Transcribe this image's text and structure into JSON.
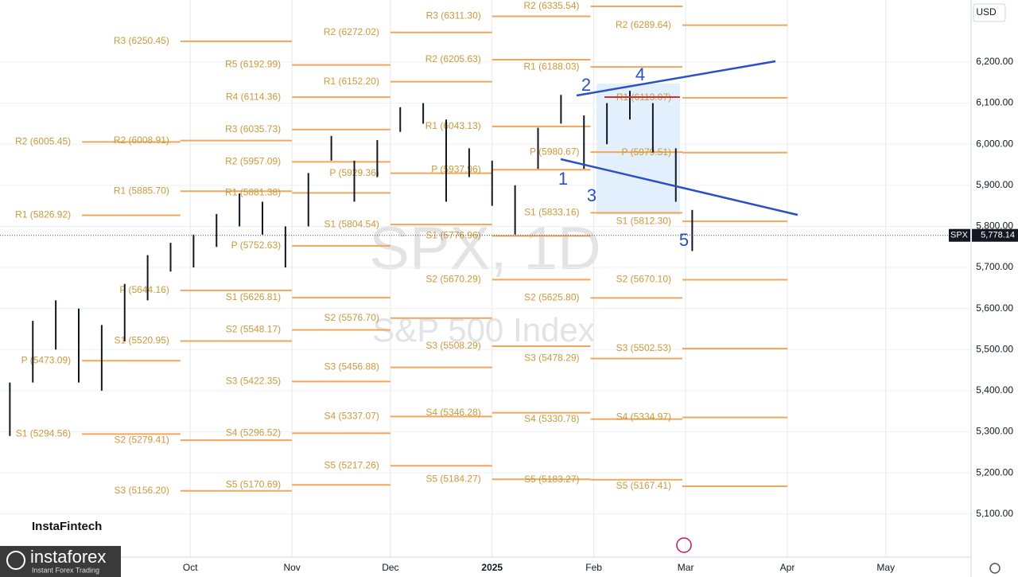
{
  "chart_data": {
    "type": "ohlc",
    "title": "SPX, 1D",
    "subtitle": "S&P 500 Index",
    "currency": "USD",
    "symbol": "SPX",
    "last_price": {
      "value": 5778.14,
      "label": "5,778.14"
    },
    "color": "#131722",
    "x": [
      -25,
      -18,
      -11,
      -4,
      3,
      10,
      17,
      24,
      31,
      38,
      45,
      52,
      59,
      66,
      73,
      80,
      87,
      94,
      101,
      108,
      115,
      122,
      129,
      136,
      143,
      150,
      157,
      164,
      171,
      178,
      183
    ],
    "high": [
      5420,
      5570,
      5620,
      5600,
      5560,
      5660,
      5730,
      5760,
      5780,
      5830,
      5880,
      5860,
      5800,
      5930,
      6020,
      5960,
      6010,
      6090,
      6100,
      6060,
      5990,
      5960,
      5900,
      6040,
      6120,
      6070,
      6100,
      6130,
      6100,
      5990,
      5840
    ],
    "low": [
      5290,
      5420,
      5500,
      5420,
      5400,
      5520,
      5620,
      5690,
      5700,
      5750,
      5800,
      5780,
      5700,
      5800,
      5960,
      5860,
      5920,
      6030,
      6050,
      5860,
      5920,
      5850,
      5780,
      5940,
      6050,
      5940,
      6000,
      6060,
      5980,
      5860,
      5740
    ],
    "xlim": [
      -28,
      268
    ],
    "xticks": [
      {
        "value": 30,
        "label": "Oct"
      },
      {
        "value": 61,
        "label": "Nov"
      },
      {
        "value": 91,
        "label": "Dec"
      },
      {
        "value": 122,
        "label": "2025"
      },
      {
        "value": 153,
        "label": "Feb"
      },
      {
        "value": 181,
        "label": "Mar"
      },
      {
        "value": 212,
        "label": "Apr"
      },
      {
        "value": 242,
        "label": "May"
      }
    ],
    "ylim": [
      4995,
      6351
    ],
    "yticks": [
      {
        "value": 5100,
        "label": "5,100.00"
      },
      {
        "value": 5200,
        "label": "5,200.00"
      },
      {
        "value": 5300,
        "label": "5,300.00"
      },
      {
        "value": 5400,
        "label": "5,400.00"
      },
      {
        "value": 5500,
        "label": "5,500.00"
      },
      {
        "value": 5600,
        "label": "5,600.00"
      },
      {
        "value": 5700,
        "label": "5,700.00"
      },
      {
        "value": 5800,
        "label": "5,800.00"
      },
      {
        "value": 5900,
        "label": "5,900.00"
      },
      {
        "value": 6000,
        "label": "6,000.00"
      },
      {
        "value": 6100,
        "label": "6,100.00"
      },
      {
        "value": 6200,
        "label": "6,200.00"
      }
    ],
    "grid": true,
    "pivot_color": "#f3a65a",
    "pivot_text_color": "#c99a3c",
    "pivot_periods": [
      {
        "start": -3,
        "end": 27,
        "levels": [
          {
            "text": "R2 (6005.45)",
            "value": 6005.45
          },
          {
            "text": "R1 (5826.92)",
            "value": 5826.92
          },
          {
            "text": "P (5473.09)",
            "value": 5473.09
          },
          {
            "text": "S1 (5294.56)",
            "value": 5294.56
          }
        ]
      },
      {
        "start": 27,
        "end": 61,
        "levels": [
          {
            "text": "R3 (6250.45)",
            "value": 6250.45
          },
          {
            "text": "R2 (6008.91)",
            "value": 6008.91
          },
          {
            "text": "R1 (5885.70)",
            "value": 5885.7
          },
          {
            "text": "P (5644.16)",
            "value": 5644.16
          },
          {
            "text": "S1 (5520.95)",
            "value": 5520.95
          },
          {
            "text": "S2 (5279.41)",
            "value": 5279.41
          },
          {
            "text": "S3 (5156.20)",
            "value": 5156.2
          }
        ]
      },
      {
        "start": 61,
        "end": 91,
        "levels": [
          {
            "text": "R5 (6192.99)",
            "value": 6192.99
          },
          {
            "text": "R4 (6114.36)",
            "value": 6114.36
          },
          {
            "text": "R3 (6035.73)",
            "value": 6035.73
          },
          {
            "text": "R2 (5957.09)",
            "value": 5957.09
          },
          {
            "text": "R1 (5881.38)",
            "value": 5881.38
          },
          {
            "text": "P (5752.63)",
            "value": 5752.63
          },
          {
            "text": "S1 (5626.81)",
            "value": 5626.81
          },
          {
            "text": "S2 (5548.17)",
            "value": 5548.17
          },
          {
            "text": "S3 (5422.35)",
            "value": 5422.35
          },
          {
            "text": "S4 (5296.52)",
            "value": 5296.52
          },
          {
            "text": "S5 (5170.69)",
            "value": 5170.69
          }
        ]
      },
      {
        "start": 91,
        "end": 122,
        "levels": [
          {
            "text": "R2 (6272.02)",
            "value": 6272.02
          },
          {
            "text": "R1 (6152.20)",
            "value": 6152.2
          },
          {
            "text": "P (5929.36)",
            "value": 5929.36
          },
          {
            "text": "S1 (5804.54)",
            "value": 5804.54
          },
          {
            "text": "S2 (5576.70)",
            "value": 5576.7
          },
          {
            "text": "S3 (5456.88)",
            "value": 5456.88
          },
          {
            "text": "S4 (5337.07)",
            "value": 5337.07
          },
          {
            "text": "S5 (5217.26)",
            "value": 5217.26
          }
        ]
      },
      {
        "start": 122,
        "end": 152,
        "levels": [
          {
            "text": "R3 (6311.30)",
            "value": 6311.3
          },
          {
            "text": "R2 (6205.63)",
            "value": 6205.63
          },
          {
            "text": "R1 (6043.13)",
            "value": 6043.13
          },
          {
            "text": "P (5937.96)",
            "value": 5937.96
          },
          {
            "text": "S1 (5776.96)",
            "value": 5776.96
          },
          {
            "text": "S2 (5670.29)",
            "value": 5670.29
          },
          {
            "text": "S3 (5508.29)",
            "value": 5508.29
          },
          {
            "text": "S4 (5346.28)",
            "value": 5346.28
          },
          {
            "text": "S5 (5184.27)",
            "value": 5184.27
          }
        ]
      },
      {
        "start": 152,
        "end": 180,
        "levels": [
          {
            "text": "R2 (6335.54)",
            "value": 6335.54
          },
          {
            "text": "R1 (6188.03)",
            "value": 6188.03
          },
          {
            "text": "P (5980.67)",
            "value": 5980.67
          },
          {
            "text": "S1 (5833.16)",
            "value": 5833.16
          },
          {
            "text": "S2 (5625.80)",
            "value": 5625.8
          },
          {
            "text": "S3 (5478.29)",
            "value": 5478.29
          },
          {
            "text": "S4 (5330.78)",
            "value": 5330.78
          },
          {
            "text": "S5 (5183.27)",
            "value": 5183.27
          }
        ]
      },
      {
        "start": 180,
        "end": 212,
        "levels": [
          {
            "text": "R2 (6289.64)",
            "value": 6289.64
          },
          {
            "text": "R1 (6113.07)",
            "value": 6113.07
          },
          {
            "text": "P (5979.51)",
            "value": 5979.51
          },
          {
            "text": "S1 (5812.30)",
            "value": 5812.3
          },
          {
            "text": "S2 (5670.10)",
            "value": 5670.1
          },
          {
            "text": "S3 (5502.53)",
            "value": 5502.53
          },
          {
            "text": "S4 (5334.97)",
            "value": 5334.97
          },
          {
            "text": "S5 (5167.41)",
            "value": 5167.41
          }
        ]
      }
    ],
    "wave_labels": [
      "1",
      "2",
      "3",
      "4",
      "5"
    ]
  },
  "branding": {
    "watermark": "InstaFintech",
    "logo": "instaforex",
    "tagline": "Instant Forex Trading"
  }
}
